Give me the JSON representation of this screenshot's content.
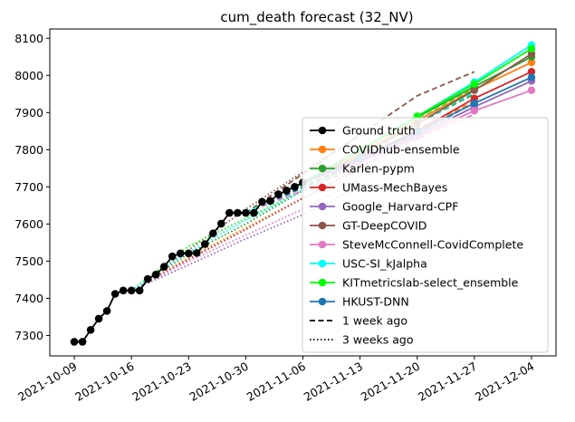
{
  "chart_data": {
    "type": "line",
    "title": "cum_death forecast (32_NV)",
    "xlabel": "",
    "ylabel": "",
    "x_ticks": [
      "2021-10-09",
      "2021-10-16",
      "2021-10-23",
      "2021-10-30",
      "2021-11-06",
      "2021-11-13",
      "2021-11-20",
      "2021-11-27",
      "2021-12-04"
    ],
    "y_ticks": [
      7300,
      7400,
      7500,
      7600,
      7700,
      7800,
      7900,
      8000,
      8100
    ],
    "xlim": [
      "2021-10-06",
      "2021-12-07"
    ],
    "ylim": [
      7245,
      8125
    ],
    "legend_position": "lower right",
    "colors": {
      "Ground truth": "#000000",
      "COVIDhub-ensemble": "#ff7f0e",
      "Karlen-pypm": "#2ca02c",
      "UMass-MechBayes": "#d62728",
      "Google_Harvard-CPF": "#9467bd",
      "GT-DeepCOVID": "#8c564b",
      "SteveMcConnell-CovidComplete": "#e377c2",
      "USC-SI_kJalpha": "#00ffff",
      "KITmetricslab-select_ensemble": "#00ff00",
      "HKUST-DNN": "#1f77b4"
    },
    "legend": [
      {
        "label": "Ground truth",
        "kind": "marker-line",
        "color": "#000000"
      },
      {
        "label": "COVIDhub-ensemble",
        "kind": "marker-line",
        "color": "#ff7f0e"
      },
      {
        "label": "Karlen-pypm",
        "kind": "marker-line",
        "color": "#2ca02c"
      },
      {
        "label": "UMass-MechBayes",
        "kind": "marker-line",
        "color": "#d62728"
      },
      {
        "label": "Google_Harvard-CPF",
        "kind": "marker-line",
        "color": "#9467bd"
      },
      {
        "label": "GT-DeepCOVID",
        "kind": "marker-line",
        "color": "#8c564b"
      },
      {
        "label": "SteveMcConnell-CovidComplete",
        "kind": "marker-line",
        "color": "#e377c2"
      },
      {
        "label": "USC-SI_kJalpha",
        "kind": "marker-line",
        "color": "#00ffff"
      },
      {
        "label": "KITmetricslab-select_ensemble",
        "kind": "marker-line",
        "color": "#00ff00"
      },
      {
        "label": "HKUST-DNN",
        "kind": "marker-line",
        "color": "#1f77b4"
      },
      {
        "label": "1 week ago",
        "kind": "dashed",
        "color": "#000000"
      },
      {
        "label": "3 weeks ago",
        "kind": "dotted",
        "color": "#000000"
      }
    ],
    "ground_truth": {
      "x": [
        "2021-10-09",
        "2021-10-10",
        "2021-10-11",
        "2021-10-12",
        "2021-10-13",
        "2021-10-14",
        "2021-10-15",
        "2021-10-16",
        "2021-10-17",
        "2021-10-18",
        "2021-10-19",
        "2021-10-20",
        "2021-10-21",
        "2021-10-22",
        "2021-10-23",
        "2021-10-24",
        "2021-10-25",
        "2021-10-26",
        "2021-10-27",
        "2021-10-28",
        "2021-10-29",
        "2021-10-30",
        "2021-10-31",
        "2021-11-01",
        "2021-11-02",
        "2021-11-03",
        "2021-11-04",
        "2021-11-05",
        "2021-11-06"
      ],
      "y": [
        7283,
        7283,
        7315,
        7345,
        7366,
        7412,
        7421,
        7421,
        7421,
        7452,
        7464,
        7485,
        7513,
        7521,
        7521,
        7522,
        7546,
        7575,
        7601,
        7630,
        7630,
        7630,
        7630,
        7660,
        7662,
        7680,
        7690,
        7700,
        7712
      ]
    },
    "forecasts": [
      {
        "model": "COVIDhub-ensemble",
        "style": "solid",
        "x": [
          "2021-11-06",
          "2021-11-13",
          "2021-11-20",
          "2021-11-27",
          "2021-12-04"
        ],
        "y": [
          7712,
          7790,
          7878,
          7962,
          8035
        ]
      },
      {
        "model": "Karlen-pypm",
        "style": "solid",
        "x": [
          "2021-11-06",
          "2021-11-13",
          "2021-11-20",
          "2021-11-27",
          "2021-12-04"
        ],
        "y": [
          7712,
          7798,
          7887,
          7970,
          8050
        ]
      },
      {
        "model": "UMass-MechBayes",
        "style": "solid",
        "x": [
          "2021-11-06",
          "2021-11-13",
          "2021-11-20",
          "2021-11-27",
          "2021-12-04"
        ],
        "y": [
          7712,
          7778,
          7850,
          7938,
          8010
        ]
      },
      {
        "model": "Google_Harvard-CPF",
        "style": "solid",
        "x": [
          "2021-11-06",
          "2021-11-13",
          "2021-11-20",
          "2021-11-27",
          "2021-12-04"
        ],
        "y": [
          7712,
          7770,
          7840,
          7915,
          7985
        ]
      },
      {
        "model": "GT-DeepCOVID",
        "style": "solid",
        "x": [
          "2021-11-06",
          "2021-11-13",
          "2021-11-20",
          "2021-11-27",
          "2021-12-04"
        ],
        "y": [
          7712,
          7785,
          7870,
          7960,
          8058
        ]
      },
      {
        "model": "SteveMcConnell-CovidComplete",
        "style": "solid",
        "x": [
          "2021-11-06",
          "2021-11-13",
          "2021-11-20",
          "2021-11-27",
          "2021-12-04"
        ],
        "y": [
          7712,
          7765,
          7835,
          7905,
          7960
        ]
      },
      {
        "model": "USC-SI_kJalpha",
        "style": "solid",
        "x": [
          "2021-11-06",
          "2021-11-13",
          "2021-11-20",
          "2021-11-27",
          "2021-12-04"
        ],
        "y": [
          7712,
          7800,
          7890,
          7982,
          8082
        ]
      },
      {
        "model": "KITmetricslab-select_ensemble",
        "style": "solid",
        "x": [
          "2021-11-06",
          "2021-11-13",
          "2021-11-20",
          "2021-11-27",
          "2021-12-04"
        ],
        "y": [
          7712,
          7800,
          7890,
          7977,
          8072
        ]
      },
      {
        "model": "HKUST-DNN",
        "style": "solid",
        "x": [
          "2021-11-06",
          "2021-11-13",
          "2021-11-20",
          "2021-11-27",
          "2021-12-04"
        ],
        "y": [
          7712,
          7775,
          7848,
          7925,
          7995
        ]
      },
      {
        "model": "GT-DeepCOVID",
        "style": "dashed",
        "x": [
          "2021-10-30",
          "2021-11-06",
          "2021-11-13",
          "2021-11-20",
          "2021-11-27"
        ],
        "y": [
          7630,
          7735,
          7840,
          7945,
          8010
        ]
      },
      {
        "model": "KITmetricslab-select_ensemble",
        "style": "dashed",
        "x": [
          "2021-10-30",
          "2021-11-06",
          "2021-11-13",
          "2021-11-20",
          "2021-11-27"
        ],
        "y": [
          7630,
          7710,
          7790,
          7880,
          7965
        ]
      },
      {
        "model": "Karlen-pypm",
        "style": "dashed",
        "x": [
          "2021-10-30",
          "2021-11-06",
          "2021-11-13",
          "2021-11-20",
          "2021-11-27"
        ],
        "y": [
          7630,
          7705,
          7780,
          7870,
          7950
        ]
      },
      {
        "model": "COVIDhub-ensemble",
        "style": "dashed",
        "x": [
          "2021-10-30",
          "2021-11-06",
          "2021-11-13",
          "2021-11-20",
          "2021-11-27"
        ],
        "y": [
          7630,
          7700,
          7775,
          7855,
          7930
        ]
      },
      {
        "model": "HKUST-DNN",
        "style": "dashed",
        "x": [
          "2021-10-30",
          "2021-11-06",
          "2021-11-13",
          "2021-11-20",
          "2021-11-27"
        ],
        "y": [
          7630,
          7698,
          7768,
          7845,
          7925
        ]
      },
      {
        "model": "SteveMcConnell-CovidComplete",
        "style": "dashed",
        "x": [
          "2021-10-30",
          "2021-11-06",
          "2021-11-13",
          "2021-11-20",
          "2021-11-27"
        ],
        "y": [
          7630,
          7690,
          7755,
          7830,
          7895
        ]
      },
      {
        "model": "USC-SI_kJalpha",
        "style": "dashed",
        "x": [
          "2021-10-30",
          "2021-11-06",
          "2021-11-13",
          "2021-11-20",
          "2021-11-27"
        ],
        "y": [
          7630,
          7705,
          7785,
          7870,
          7955
        ]
      },
      {
        "model": "GT-DeepCOVID",
        "style": "dotted",
        "x": [
          "2021-10-16",
          "2021-10-23",
          "2021-10-30",
          "2021-11-06",
          "2021-11-13"
        ],
        "y": [
          7421,
          7530,
          7640,
          7740,
          7840
        ]
      },
      {
        "model": "KITmetricslab-select_ensemble",
        "style": "dotted",
        "x": [
          "2021-10-16",
          "2021-10-23",
          "2021-10-30",
          "2021-11-06",
          "2021-11-13"
        ],
        "y": [
          7421,
          7540,
          7615,
          7690,
          7765
        ]
      },
      {
        "model": "Karlen-pypm",
        "style": "dotted",
        "x": [
          "2021-10-16",
          "2021-10-23",
          "2021-10-30",
          "2021-11-06",
          "2021-11-13"
        ],
        "y": [
          7421,
          7520,
          7600,
          7690,
          7770
        ]
      },
      {
        "model": "COVIDhub-ensemble",
        "style": "dotted",
        "x": [
          "2021-10-16",
          "2021-10-23",
          "2021-10-30",
          "2021-11-06",
          "2021-11-13"
        ],
        "y": [
          7421,
          7510,
          7590,
          7670,
          7750
        ]
      },
      {
        "model": "UMass-MechBayes",
        "style": "dotted",
        "x": [
          "2021-10-16",
          "2021-10-23",
          "2021-10-30",
          "2021-11-06",
          "2021-11-13"
        ],
        "y": [
          7421,
          7505,
          7585,
          7670,
          7750
        ]
      },
      {
        "model": "Google_Harvard-CPF",
        "style": "dotted",
        "x": [
          "2021-10-16",
          "2021-10-23",
          "2021-10-30",
          "2021-11-06",
          "2021-11-13"
        ],
        "y": [
          7421,
          7490,
          7560,
          7625,
          7700
        ]
      },
      {
        "model": "SteveMcConnell-CovidComplete",
        "style": "dotted",
        "x": [
          "2021-10-16",
          "2021-10-23",
          "2021-10-30",
          "2021-11-06",
          "2021-11-13"
        ],
        "y": [
          7421,
          7500,
          7570,
          7640,
          7720
        ]
      },
      {
        "model": "USC-SI_kJalpha",
        "style": "dotted",
        "x": [
          "2021-10-16",
          "2021-10-23",
          "2021-10-30",
          "2021-11-06",
          "2021-11-13"
        ],
        "y": [
          7421,
          7525,
          7610,
          7690,
          7775
        ]
      }
    ]
  }
}
